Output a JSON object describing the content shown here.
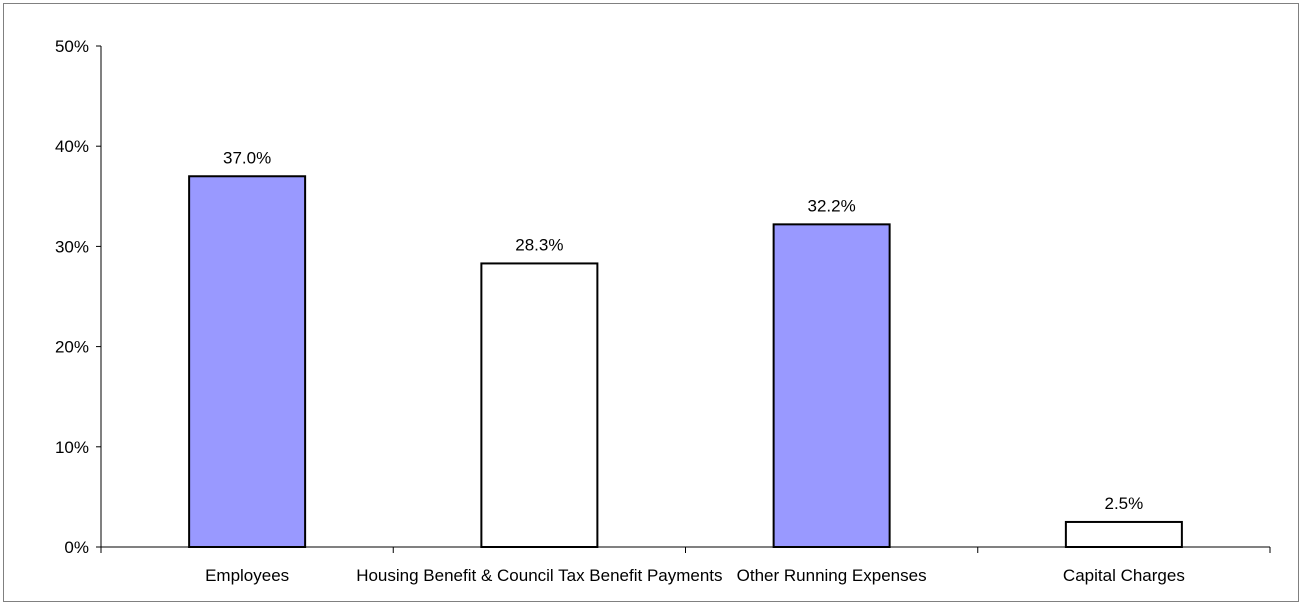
{
  "chart_data": {
    "type": "bar",
    "categories": [
      "Employees",
      "Housing Benefit & Council Tax Benefit Payments",
      "Other Running Expenses",
      "Capital Charges"
    ],
    "values": [
      37.0,
      28.3,
      32.2,
      2.5
    ],
    "value_labels": [
      "37.0%",
      "28.3%",
      "32.2%",
      "2.5%"
    ],
    "bar_fills": [
      "#9999ff",
      "#ffffff",
      "#9999ff",
      "#ffffff"
    ],
    "ylim": [
      0,
      50
    ],
    "yticks": [
      0,
      10,
      20,
      30,
      40,
      50
    ],
    "ytick_labels": [
      "0%",
      "10%",
      "20%",
      "30%",
      "40%",
      "50%"
    ],
    "title": "",
    "xlabel": "",
    "ylabel": "",
    "grid": false,
    "legend": "none"
  }
}
